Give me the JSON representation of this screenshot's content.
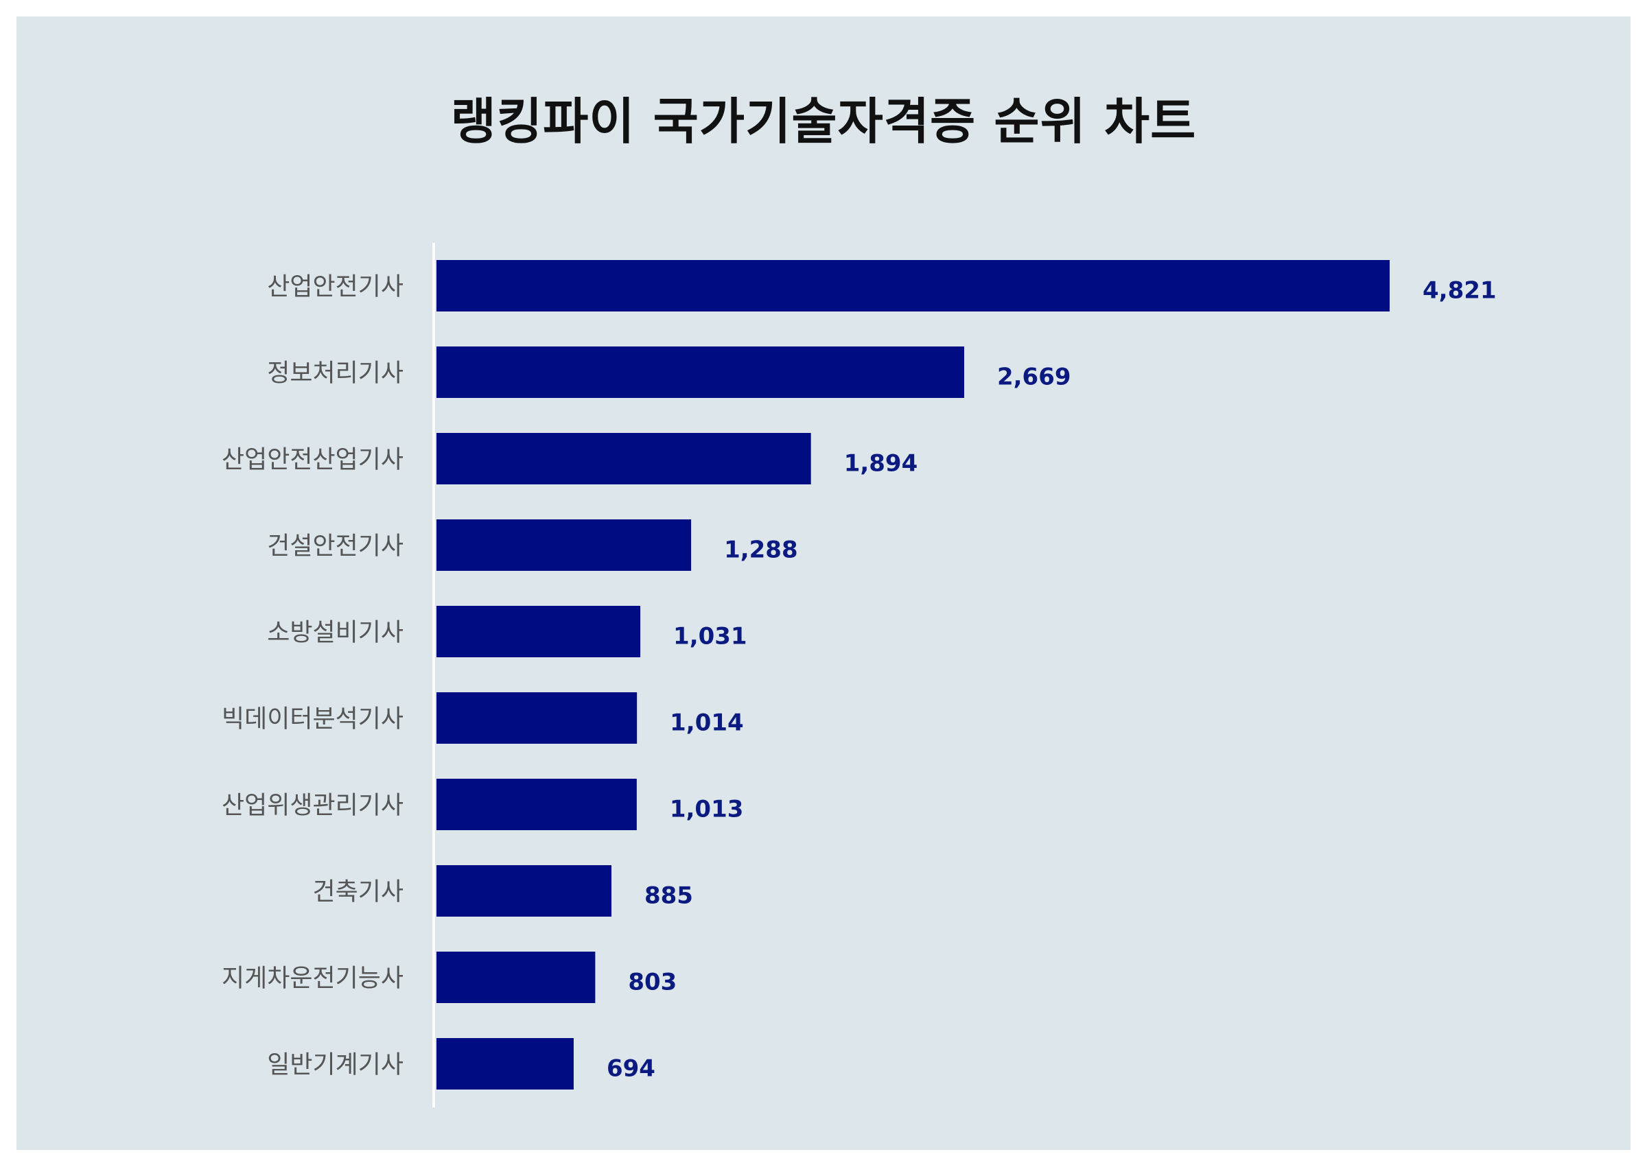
{
  "title": "랭킹파이 국가기술자격증 순위 차트",
  "colors": {
    "bar": "#000d82",
    "value_label": "#0a1a80",
    "background": "#dce6eb",
    "axis": "#ffffff"
  },
  "chart_data": {
    "type": "bar",
    "orientation": "horizontal",
    "title": "랭킹파이 국가기술자격증 순위 차트",
    "categories": [
      "산업안전기사",
      "정보처리기사",
      "산업안전산업기사",
      "건설안전기사",
      "소방설비기사",
      "빅데이터분석기사",
      "산업위생관리기사",
      "건축기사",
      "지게차운전기능사",
      "일반기계기사"
    ],
    "values": [
      4821,
      2669,
      1894,
      1288,
      1031,
      1014,
      1013,
      885,
      803,
      694
    ],
    "value_labels": [
      "4,821",
      "2,669",
      "1,894",
      "1,288",
      "1,031",
      "1,014",
      "1,013",
      "885",
      "803",
      "694"
    ],
    "xlim": [
      0,
      5000
    ],
    "grid": false,
    "legend": "none"
  }
}
